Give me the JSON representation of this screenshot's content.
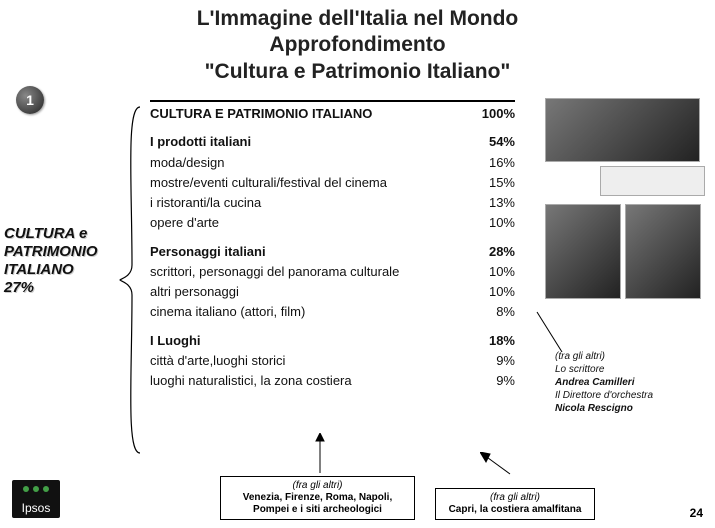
{
  "title": {
    "line1": "L'Immagine dell'Italia nel Mondo",
    "line2": "Approfondimento",
    "line3": "\"Cultura e Patrimonio Italiano\""
  },
  "badge": "1",
  "side_label": {
    "l1": "CULTURA e",
    "l2": "PATRIMONIO",
    "l3": "ITALIANO",
    "l4": "27%"
  },
  "rows": [
    {
      "label": "CULTURA E PATRIMONIO ITALIANO",
      "value": "100%",
      "bold": true,
      "head": true
    },
    {
      "label": "I prodotti italiani",
      "value": "54%",
      "bold": true
    },
    {
      "label": "moda/design",
      "value": "16%",
      "bold": false
    },
    {
      "label": "mostre/eventi culturali/festival del cinema",
      "value": "15%",
      "bold": false
    },
    {
      "label": "i ristoranti/la cucina",
      "value": "13%",
      "bold": false
    },
    {
      "label": "opere d'arte",
      "value": "10%",
      "bold": false
    },
    {
      "label": "Personaggi italiani",
      "value": "28%",
      "bold": true
    },
    {
      "label": "scrittori, personaggi del panorama culturale",
      "value": "10%",
      "bold": false
    },
    {
      "label": "altri personaggi",
      "value": "10%",
      "bold": false
    },
    {
      "label": "cinema italiano (attori, film)",
      "value": "8%",
      "bold": false
    },
    {
      "label": "I Luoghi",
      "value": "18%",
      "bold": true
    },
    {
      "label": "città d'arte,luoghi storici",
      "value": "9%",
      "bold": false
    },
    {
      "label": "luoghi naturalistici, la zona costiera",
      "value": "9%",
      "bold": false
    }
  ],
  "callout": {
    "intro": "(tra gli altri)",
    "l1a": "Lo scrittore",
    "l1b": "Andrea Camilleri",
    "l2a": "Il Direttore d'orchestra",
    "l2b": "Nicola Rescigno"
  },
  "note1": {
    "intro": "(fra gli altri)",
    "body": "Venezia, Firenze, Roma, Napoli, Pompei e i siti archeologici"
  },
  "note2": {
    "intro": "(fra gli altri)",
    "body": "Capri, la costiera amalfitana"
  },
  "logo": "Ipsos",
  "pagenum": "24",
  "colors": {
    "text": "#111111",
    "border": "#000000",
    "bg": "#ffffff"
  }
}
